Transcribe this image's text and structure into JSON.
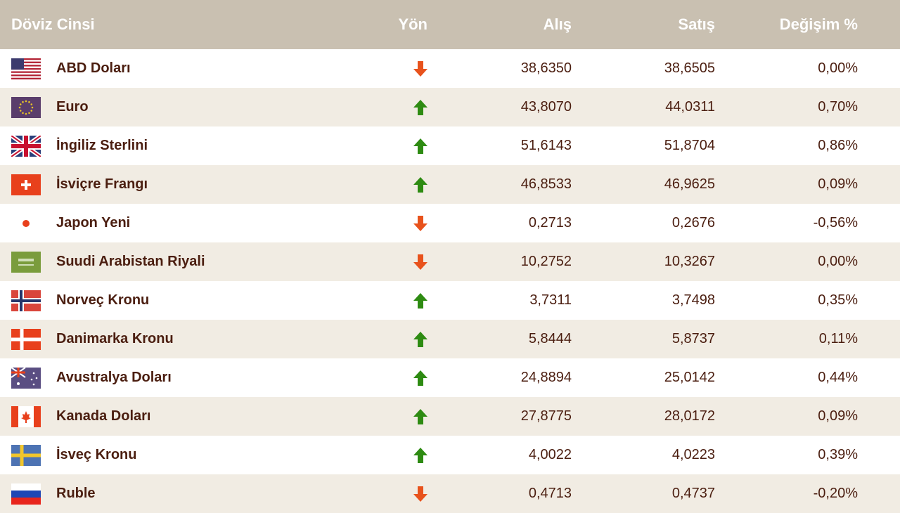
{
  "header": {
    "currency": "Döviz Cinsi",
    "direction": "Yön",
    "buy": "Alış",
    "sell": "Satış",
    "change": "Değişim %"
  },
  "colors": {
    "up": "#2e8b12",
    "down": "#e8521c",
    "header_bg": "#c9c0b1",
    "row_alt": "#f1ece3",
    "text": "#4b1e10"
  },
  "rows": [
    {
      "flag": "us-flag-icon",
      "name": "ABD Doları",
      "dir": "down",
      "buy": "38,6350",
      "sell": "38,6505",
      "change": "0,00%"
    },
    {
      "flag": "eu-flag-icon",
      "name": "Euro",
      "dir": "up",
      "buy": "43,8070",
      "sell": "44,0311",
      "change": "0,70%"
    },
    {
      "flag": "gb-flag-icon",
      "name": "İngiliz Sterlini",
      "dir": "up",
      "buy": "51,6143",
      "sell": "51,8704",
      "change": "0,86%"
    },
    {
      "flag": "ch-flag-icon",
      "name": "İsviçre Frangı",
      "dir": "up",
      "buy": "46,8533",
      "sell": "46,9625",
      "change": "0,09%"
    },
    {
      "flag": "jp-flag-icon",
      "name": "Japon Yeni",
      "dir": "down",
      "buy": "0,2713",
      "sell": "0,2676",
      "change": "-0,56%"
    },
    {
      "flag": "sa-flag-icon",
      "name": "Suudi Arabistan Riyali",
      "dir": "down",
      "buy": "10,2752",
      "sell": "10,3267",
      "change": "0,00%"
    },
    {
      "flag": "no-flag-icon",
      "name": "Norveç Kronu",
      "dir": "up",
      "buy": "3,7311",
      "sell": "3,7498",
      "change": "0,35%"
    },
    {
      "flag": "dk-flag-icon",
      "name": "Danimarka Kronu",
      "dir": "up",
      "buy": "5,8444",
      "sell": "5,8737",
      "change": "0,11%"
    },
    {
      "flag": "au-flag-icon",
      "name": "Avustralya Doları",
      "dir": "up",
      "buy": "24,8894",
      "sell": "25,0142",
      "change": "0,44%"
    },
    {
      "flag": "ca-flag-icon",
      "name": "Kanada Doları",
      "dir": "up",
      "buy": "27,8775",
      "sell": "28,0172",
      "change": "0,09%"
    },
    {
      "flag": "se-flag-icon",
      "name": "İsveç Kronu",
      "dir": "up",
      "buy": "4,0022",
      "sell": "4,0223",
      "change": "0,39%"
    },
    {
      "flag": "ru-flag-icon",
      "name": "Ruble",
      "dir": "down",
      "buy": "0,4713",
      "sell": "0,4737",
      "change": "-0,20%"
    }
  ]
}
